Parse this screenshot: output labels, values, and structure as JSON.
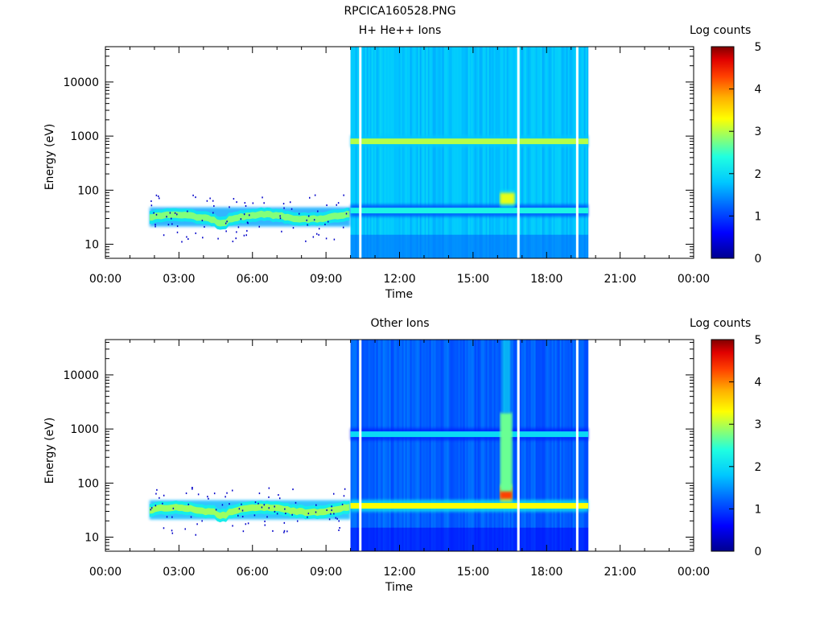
{
  "figure": {
    "title": "RPCICA160528.PNG"
  },
  "chart_data": [
    {
      "type": "heatmap",
      "title": "H+ He++ Ions",
      "xlabel": "Time",
      "ylabel": "Energy (eV)",
      "x_ticks": [
        "00:00",
        "03:00",
        "06:00",
        "09:00",
        "12:00",
        "15:00",
        "18:00",
        "21:00",
        "00:00"
      ],
      "x_range_hours": [
        0,
        24
      ],
      "y_scale": "log",
      "y_range": [
        5.5,
        45000
      ],
      "y_ticks": [
        "10",
        "100",
        "1000",
        "10000"
      ],
      "colorbar": {
        "label": "Log counts",
        "range": [
          0,
          5
        ],
        "ticks": [
          "0",
          "1",
          "2",
          "3",
          "4",
          "5"
        ]
      },
      "coverage_hours": [
        1.8,
        19.7
      ],
      "data_gaps_hours": [
        10.4,
        16.85,
        19.25
      ],
      "features": [
        {
          "description": "solar wind band",
          "start_h": 1.8,
          "end_h": 10.0,
          "energy_eV": 32,
          "log_counts": 2.8
        },
        {
          "description": "band",
          "start_h": 10.0,
          "end_h": 19.7,
          "energy_eV": 800,
          "log_counts": 3.0
        },
        {
          "description": "band",
          "start_h": 10.0,
          "end_h": 19.7,
          "energy_eV": 42,
          "log_counts": 2.3
        },
        {
          "description": "burst",
          "start_h": 16.1,
          "end_h": 16.7,
          "energy_eV": 70,
          "log_counts": 3.2
        },
        {
          "description": "background",
          "start_h": 10.0,
          "end_h": 19.7,
          "energy_eV_range": [
            6,
            45000
          ],
          "log_counts": 1.8
        }
      ]
    },
    {
      "type": "heatmap",
      "title": "Other Ions",
      "xlabel": "Time",
      "ylabel": "Energy (eV)",
      "x_ticks": [
        "00:00",
        "03:00",
        "06:00",
        "09:00",
        "12:00",
        "15:00",
        "18:00",
        "21:00",
        "00:00"
      ],
      "x_range_hours": [
        0,
        24
      ],
      "y_scale": "log",
      "y_range": [
        5.5,
        45000
      ],
      "y_ticks": [
        "10",
        "100",
        "1000",
        "10000"
      ],
      "colorbar": {
        "label": "Log counts",
        "range": [
          0,
          5
        ],
        "ticks": [
          "0",
          "1",
          "2",
          "3",
          "4",
          "5"
        ]
      },
      "coverage_hours": [
        1.8,
        19.7
      ],
      "data_gaps_hours": [
        10.4,
        16.85,
        19.25
      ],
      "features": [
        {
          "description": "solar wind band",
          "start_h": 1.8,
          "end_h": 10.0,
          "energy_eV": 32,
          "log_counts": 2.9
        },
        {
          "description": "band",
          "start_h": 10.0,
          "end_h": 19.7,
          "energy_eV": 38,
          "log_counts": 3.3
        },
        {
          "description": "band",
          "start_h": 10.0,
          "end_h": 19.7,
          "energy_eV": 800,
          "log_counts": 2.0
        },
        {
          "description": "burst",
          "start_h": 16.1,
          "end_h": 16.6,
          "energy_eV": 65,
          "log_counts": 4.3
        },
        {
          "description": "vertical streak",
          "start_h": 16.1,
          "end_h": 16.6,
          "energy_eV_range": [
            70,
            2000
          ],
          "log_counts": 2.7
        },
        {
          "description": "background",
          "start_h": 10.0,
          "end_h": 19.7,
          "energy_eV_range": [
            6,
            45000
          ],
          "log_counts": 1.2
        }
      ]
    }
  ]
}
